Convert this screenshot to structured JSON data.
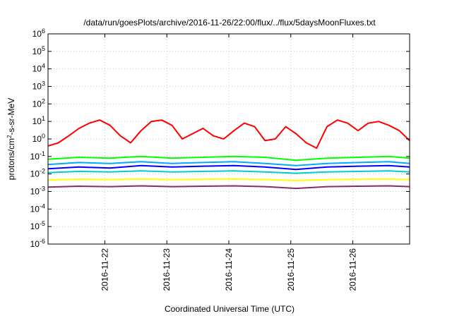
{
  "chart_data": {
    "type": "line",
    "title": "/data/run/goesPlots/archive/2016-11-26/22:00/flux/../flux/5daysMoonFluxes.txt",
    "xlabel": "Coordinated Universal Time (UTC)",
    "ylabel": "protons/cm²-s-sr-MeV",
    "ylabel_parts": {
      "pre": "protons/cm",
      "sup": "2",
      "post": "-s-sr-MeV"
    },
    "y_scale": "log",
    "ylim": [
      1e-06,
      1000000.0
    ],
    "y_ticks": [
      {
        "value": 1e-06,
        "base": "10",
        "exp": "-6"
      },
      {
        "value": 1e-05,
        "base": "10",
        "exp": "-5"
      },
      {
        "value": 0.0001,
        "base": "10",
        "exp": "-4"
      },
      {
        "value": 0.001,
        "base": "10",
        "exp": "-3"
      },
      {
        "value": 0.01,
        "base": "10",
        "exp": "-2"
      },
      {
        "value": 0.1,
        "base": "10",
        "exp": "-1"
      },
      {
        "value": 1,
        "base": "10",
        "exp": "0"
      },
      {
        "value": 10,
        "base": "10",
        "exp": "1"
      },
      {
        "value": 100,
        "base": "10",
        "exp": "2"
      },
      {
        "value": 1000,
        "base": "10",
        "exp": "3"
      },
      {
        "value": 10000,
        "base": "10",
        "exp": "4"
      },
      {
        "value": 100000,
        "base": "10",
        "exp": "5"
      },
      {
        "value": 1000000,
        "base": "10",
        "exp": "6"
      }
    ],
    "xlim": [
      "2016-11-21 02:00",
      "2016-11-26 22:00"
    ],
    "x_ticks": [
      "2016-11-22",
      "2016-11-23",
      "2016-11-24",
      "2016-11-25",
      "2016-11-26"
    ],
    "grid": true,
    "legend": "none",
    "series": [
      {
        "color": "#ff0000",
        "x": [
          "2016-11-21 02:00",
          "2016-11-21 06:00",
          "2016-11-21 10:00",
          "2016-11-21 14:00",
          "2016-11-21 18:00",
          "2016-11-21 22:00",
          "2016-11-22 02:00",
          "2016-11-22 06:00",
          "2016-11-22 10:00",
          "2016-11-22 14:00",
          "2016-11-22 18:00",
          "2016-11-22 22:00",
          "2016-11-23 02:00",
          "2016-11-23 06:00",
          "2016-11-23 10:00",
          "2016-11-23 14:00",
          "2016-11-23 18:00",
          "2016-11-23 22:00",
          "2016-11-24 02:00",
          "2016-11-24 06:00",
          "2016-11-24 10:00",
          "2016-11-24 14:00",
          "2016-11-24 18:00",
          "2016-11-24 22:00",
          "2016-11-25 02:00",
          "2016-11-25 06:00",
          "2016-11-25 10:00",
          "2016-11-25 14:00",
          "2016-11-25 18:00",
          "2016-11-25 22:00",
          "2016-11-26 02:00",
          "2016-11-26 06:00",
          "2016-11-26 10:00",
          "2016-11-26 14:00",
          "2016-11-26 18:00",
          "2016-11-26 22:00"
        ],
        "values": [
          0.4,
          0.6,
          1.5,
          4,
          8,
          12,
          6,
          1.5,
          0.6,
          3,
          10,
          12,
          6,
          1,
          2,
          4,
          1.5,
          1,
          3,
          8,
          5,
          0.8,
          1,
          5,
          2,
          0.6,
          0.3,
          5,
          12,
          8,
          3,
          8,
          10,
          6,
          3,
          0.8
        ]
      },
      {
        "color": "#00ff00",
        "x": [
          "2016-11-21 02:00",
          "2016-11-21 14:00",
          "2016-11-22 02:00",
          "2016-11-22 14:00",
          "2016-11-23 02:00",
          "2016-11-23 14:00",
          "2016-11-24 02:00",
          "2016-11-24 14:00",
          "2016-11-25 02:00",
          "2016-11-25 14:00",
          "2016-11-26 02:00",
          "2016-11-26 14:00",
          "2016-11-26 22:00"
        ],
        "values": [
          0.07,
          0.09,
          0.08,
          0.1,
          0.08,
          0.09,
          0.1,
          0.09,
          0.06,
          0.08,
          0.09,
          0.1,
          0.08
        ]
      },
      {
        "color": "#00aaff",
        "x": [
          "2016-11-21 02:00",
          "2016-11-21 14:00",
          "2016-11-22 02:00",
          "2016-11-22 14:00",
          "2016-11-23 02:00",
          "2016-11-23 14:00",
          "2016-11-24 02:00",
          "2016-11-24 14:00",
          "2016-11-25 02:00",
          "2016-11-25 14:00",
          "2016-11-26 02:00",
          "2016-11-26 14:00",
          "2016-11-26 22:00"
        ],
        "values": [
          0.035,
          0.045,
          0.04,
          0.05,
          0.04,
          0.045,
          0.05,
          0.04,
          0.03,
          0.04,
          0.045,
          0.05,
          0.04
        ]
      },
      {
        "color": "#0000ff",
        "x": [
          "2016-11-21 02:00",
          "2016-11-21 14:00",
          "2016-11-22 02:00",
          "2016-11-22 14:00",
          "2016-11-23 02:00",
          "2016-11-23 14:00",
          "2016-11-24 02:00",
          "2016-11-24 14:00",
          "2016-11-25 02:00",
          "2016-11-25 14:00",
          "2016-11-26 02:00",
          "2016-11-26 14:00",
          "2016-11-26 22:00"
        ],
        "values": [
          0.02,
          0.025,
          0.022,
          0.03,
          0.025,
          0.028,
          0.03,
          0.025,
          0.018,
          0.025,
          0.028,
          0.03,
          0.025
        ]
      },
      {
        "color": "#00cccc",
        "x": [
          "2016-11-21 02:00",
          "2016-11-21 14:00",
          "2016-11-22 02:00",
          "2016-11-22 14:00",
          "2016-11-23 02:00",
          "2016-11-23 14:00",
          "2016-11-24 02:00",
          "2016-11-24 14:00",
          "2016-11-25 02:00",
          "2016-11-25 14:00",
          "2016-11-26 02:00",
          "2016-11-26 14:00",
          "2016-11-26 22:00"
        ],
        "values": [
          0.012,
          0.014,
          0.013,
          0.015,
          0.013,
          0.014,
          0.015,
          0.013,
          0.011,
          0.013,
          0.014,
          0.015,
          0.013
        ]
      },
      {
        "color": "#ffff00",
        "x": [
          "2016-11-21 02:00",
          "2016-11-21 14:00",
          "2016-11-22 02:00",
          "2016-11-22 14:00",
          "2016-11-23 02:00",
          "2016-11-23 14:00",
          "2016-11-24 02:00",
          "2016-11-24 14:00",
          "2016-11-25 02:00",
          "2016-11-25 14:00",
          "2016-11-26 02:00",
          "2016-11-26 14:00",
          "2016-11-26 22:00"
        ],
        "values": [
          0.0045,
          0.005,
          0.0048,
          0.0052,
          0.0048,
          0.005,
          0.0052,
          0.0048,
          0.0042,
          0.0048,
          0.005,
          0.0052,
          0.0048
        ]
      },
      {
        "color": "#8b2a6b",
        "x": [
          "2016-11-21 02:00",
          "2016-11-21 14:00",
          "2016-11-22 02:00",
          "2016-11-22 14:00",
          "2016-11-23 02:00",
          "2016-11-23 14:00",
          "2016-11-24 02:00",
          "2016-11-24 14:00",
          "2016-11-25 02:00",
          "2016-11-25 14:00",
          "2016-11-26 02:00",
          "2016-11-26 14:00",
          "2016-11-26 22:00"
        ],
        "values": [
          0.0018,
          0.002,
          0.0019,
          0.0021,
          0.0019,
          0.002,
          0.0021,
          0.0019,
          0.0015,
          0.0019,
          0.002,
          0.0021,
          0.0019
        ]
      }
    ]
  }
}
